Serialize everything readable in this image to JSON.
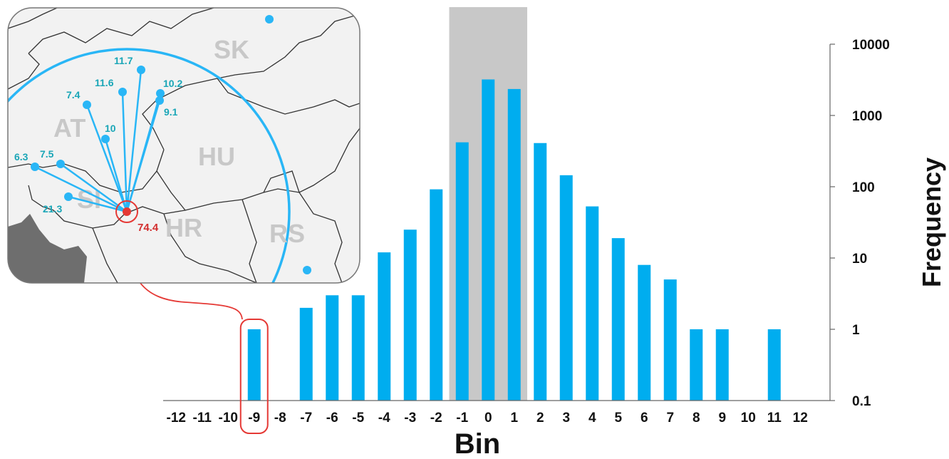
{
  "chart_data": {
    "type": "bar",
    "xlabel": "Bin",
    "ylabel": "Frequency",
    "yscale": "log",
    "ylim": [
      0.1,
      10000
    ],
    "yticks": [
      "0.1",
      "1",
      "10",
      "100",
      "1000",
      "10000"
    ],
    "grid": false,
    "categories": [
      "-12",
      "-11",
      "-10",
      "-9",
      "-8",
      "-7",
      "-6",
      "-5",
      "-4",
      "-3",
      "-2",
      "-1",
      "0",
      "1",
      "2",
      "3",
      "4",
      "5",
      "6",
      "7",
      "8",
      "9",
      "10",
      "11",
      "12"
    ],
    "values": [
      null,
      null,
      null,
      1,
      null,
      2,
      3,
      3,
      12,
      25,
      92,
      420,
      3200,
      2350,
      410,
      145,
      53,
      19,
      8,
      5,
      1,
      1,
      null,
      1,
      null
    ],
    "highlight_bins": [
      "-1",
      "0",
      "1"
    ],
    "circled_bin": "-9",
    "colors": {
      "bar": "#00adef",
      "highlight": "#c8c8c8",
      "circle": "#e53935"
    }
  },
  "inset_map": {
    "country_labels": [
      "SK",
      "AT",
      "HU",
      "SI",
      "HR",
      "RS"
    ],
    "stations": [
      "11.7",
      "11.6",
      "10.2",
      "7.4",
      "9.1",
      "10",
      "6.3",
      "7.5",
      "21.3"
    ],
    "epicenter_value": "74.4",
    "colors": {
      "station": "#29b6f6",
      "ray": "#29b6f6",
      "epicenter": "#e53935",
      "border": "#333333"
    }
  }
}
